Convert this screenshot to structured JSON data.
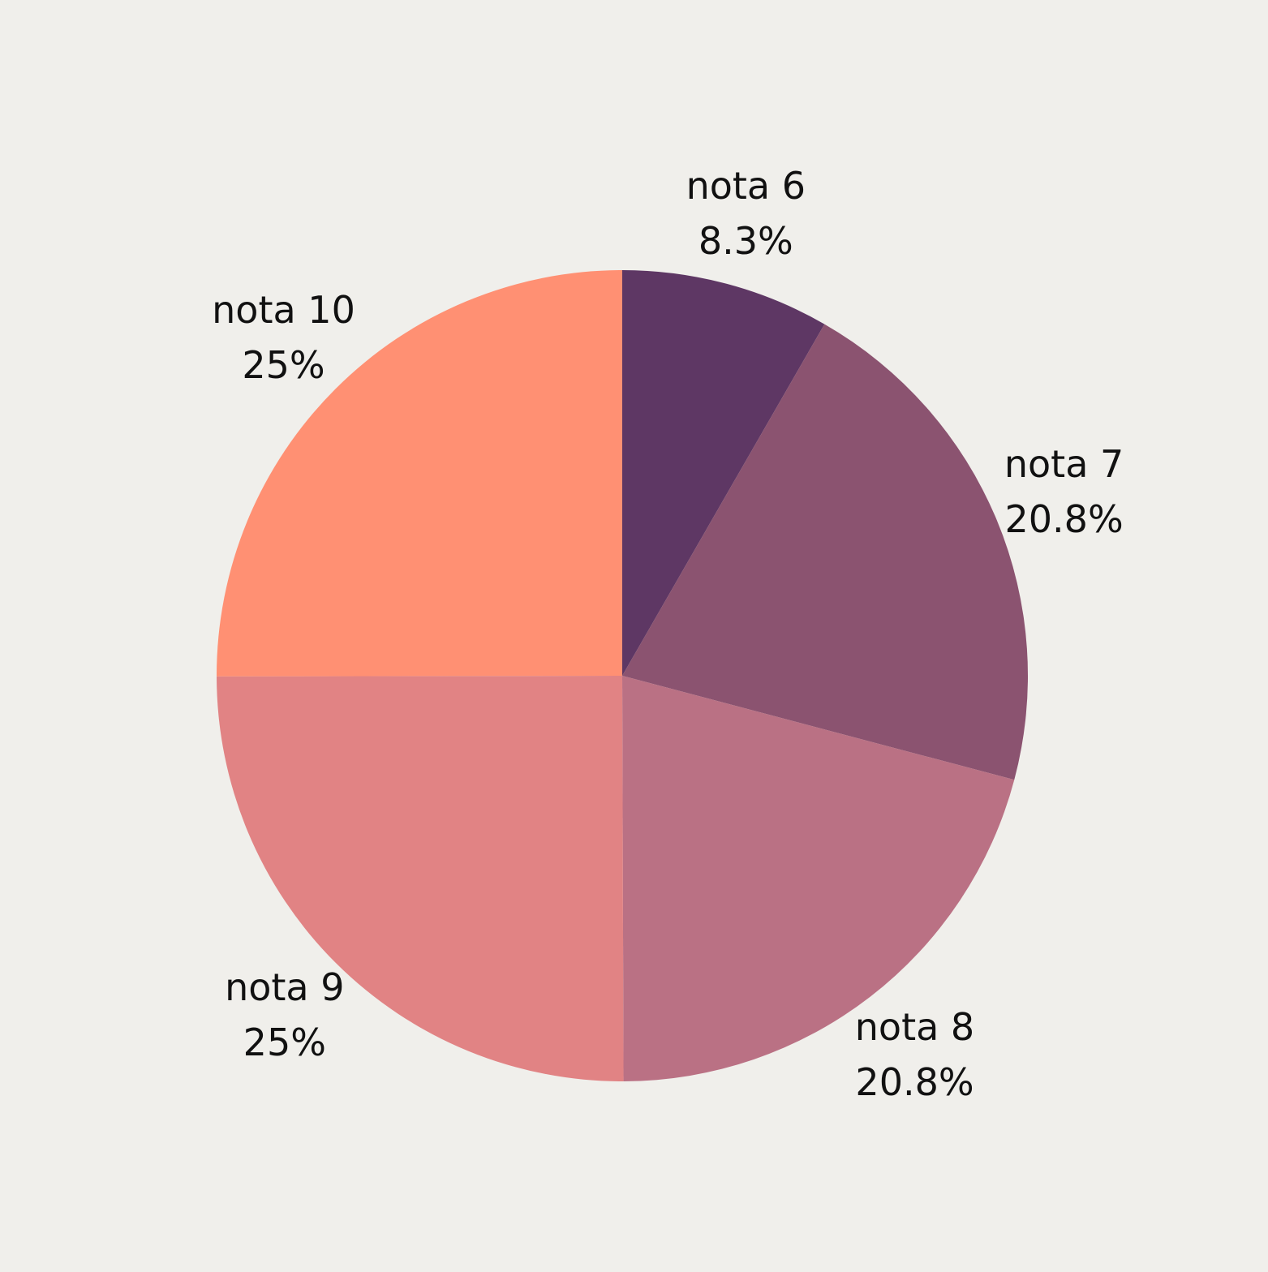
{
  "chart_data": {
    "type": "pie",
    "start_angle_deg": 0,
    "direction": "clockwise",
    "slices": [
      {
        "label": "nota 6",
        "value": 8.3,
        "value_label": "8.3%",
        "color": "#5e3764"
      },
      {
        "label": "nota 7",
        "value": 20.8,
        "value_label": "20.8%",
        "color": "#8b5370"
      },
      {
        "label": "nota 8",
        "value": 20.8,
        "value_label": "20.8%",
        "color": "#ba7184"
      },
      {
        "label": "nota 9",
        "value": 25,
        "value_label": "25%",
        "color": "#e18384"
      },
      {
        "label": "nota 10",
        "value": 25,
        "value_label": "25%",
        "color": "#ff9073"
      }
    ]
  },
  "colors": {
    "background": "#f0efeb",
    "label_text": "#111111"
  }
}
